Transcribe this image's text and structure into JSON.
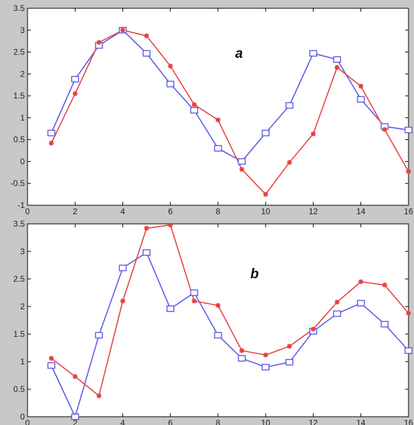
{
  "chart_data": [
    {
      "type": "line",
      "panel_label": "a",
      "x": [
        1,
        2,
        3,
        4,
        5,
        6,
        7,
        8,
        9,
        10,
        11,
        12,
        13,
        14,
        15,
        16
      ],
      "xlim": [
        0,
        16
      ],
      "ylim": [
        -1,
        3.5
      ],
      "xticks": [
        0,
        2,
        4,
        6,
        8,
        10,
        12,
        14,
        16
      ],
      "yticks": [
        -1,
        -0.5,
        0,
        0.5,
        1,
        1.5,
        2,
        2.5,
        3,
        3.5
      ],
      "xtick_labels": [
        "0",
        "2",
        "4",
        "6",
        "8",
        "10",
        "12",
        "14",
        "16"
      ],
      "ytick_labels": [
        "-1",
        "-0.5",
        "0",
        "0.5",
        "1",
        "1.5",
        "2",
        "2.5",
        "3",
        "3.5"
      ],
      "grid": false,
      "series": [
        {
          "color": "#5a5ae6",
          "marker": "square",
          "values": [
            0.65,
            1.88,
            2.65,
            3.0,
            2.47,
            1.77,
            1.17,
            0.3,
            0.0,
            0.65,
            1.28,
            2.47,
            2.33,
            1.42,
            0.8,
            0.72
          ]
        },
        {
          "color": "#e64040",
          "marker": "star",
          "values": [
            0.42,
            1.55,
            2.72,
            3.0,
            2.87,
            2.18,
            1.3,
            0.95,
            -0.18,
            -0.75,
            -0.02,
            0.63,
            2.15,
            1.72,
            0.73,
            -0.23
          ]
        }
      ]
    },
    {
      "type": "line",
      "panel_label": "b",
      "x": [
        1,
        2,
        3,
        4,
        5,
        6,
        7,
        8,
        9,
        10,
        11,
        12,
        13,
        14,
        15,
        16
      ],
      "xlim": [
        0,
        16
      ],
      "ylim": [
        0,
        3.5
      ],
      "xticks": [
        0,
        2,
        4,
        6,
        8,
        10,
        12,
        14,
        16
      ],
      "yticks": [
        0,
        0.5,
        1,
        1.5,
        2,
        2.5,
        3,
        3.5
      ],
      "xtick_labels": [
        "0",
        "2",
        "4",
        "6",
        "8",
        "10",
        "12",
        "14",
        "16"
      ],
      "ytick_labels": [
        "0",
        "0.5",
        "1",
        "1.5",
        "2",
        "2.5",
        "3",
        "3.5"
      ],
      "grid": false,
      "series": [
        {
          "color": "#5a5ae6",
          "marker": "square",
          "values": [
            0.93,
            0.0,
            1.48,
            2.7,
            2.98,
            1.96,
            2.25,
            1.48,
            1.06,
            0.9,
            0.99,
            1.55,
            1.87,
            2.06,
            1.68,
            1.2
          ]
        },
        {
          "color": "#e64040",
          "marker": "star",
          "values": [
            1.06,
            0.73,
            0.38,
            2.1,
            3.42,
            3.48,
            2.1,
            2.02,
            1.2,
            1.12,
            1.28,
            1.59,
            2.08,
            2.45,
            2.39,
            1.88
          ]
        }
      ]
    }
  ]
}
